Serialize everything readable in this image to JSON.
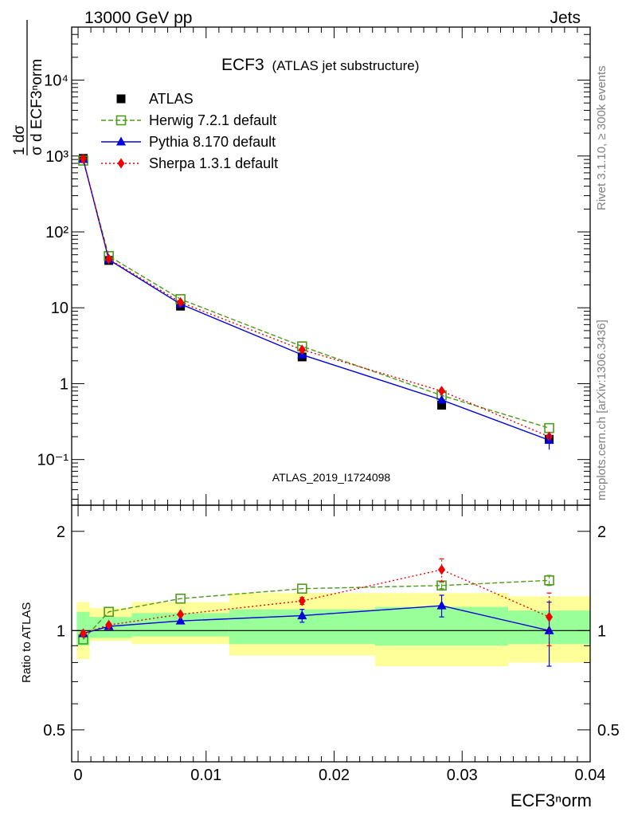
{
  "header": {
    "left": "13000 GeV pp",
    "right": "Jets"
  },
  "side_labels": {
    "rivet": "Rivet 3.1.10, ≥ 300k events",
    "mcplots": "mcplots.cern.ch [arXiv:1306.3436]"
  },
  "colors": {
    "atlas": "#000000",
    "herwig": "#4d9b1a",
    "pythia": "#0000dd",
    "sherpa": "#ee0000",
    "band_outer": "#ffff99",
    "band_inner": "#99ff99",
    "watermark": "#a0a0a0"
  },
  "chart_data": [
    {
      "type": "line",
      "panel": "main",
      "title": "ECF3",
      "subtitle": "(ATLAS jet substructure)",
      "watermark": "ATLAS_2019_I1724098",
      "ylabel_frac_top": "1   dσ",
      "ylabel_frac_bottom": "σ d ECF3ⁿorm",
      "yscale": "log",
      "xlim": [
        -0.0005,
        0.04
      ],
      "ylim": [
        0.025,
        50000
      ],
      "ytick_labels": [
        "10⁴",
        "10³",
        "10²",
        "10",
        "1",
        "10⁻¹"
      ],
      "ytick_values": [
        10000,
        1000,
        100,
        10,
        1,
        0.1
      ],
      "legend_position": "top-left",
      "series": [
        {
          "name": "ATLAS",
          "key": "atlas",
          "x": [
            0.0004,
            0.0024,
            0.008,
            0.0175,
            0.0284,
            0.0368
          ],
          "values": [
            930,
            42,
            10.5,
            2.25,
            0.52,
            0.185
          ]
        },
        {
          "name": "Herwig 7.2.1 default",
          "key": "herwig",
          "x": [
            0.0004,
            0.0024,
            0.008,
            0.0175,
            0.0284,
            0.0368
          ],
          "values": [
            870,
            48,
            13,
            3.1,
            0.7,
            0.26
          ]
        },
        {
          "name": "Pythia 8.170 default",
          "key": "pythia",
          "x": [
            0.0004,
            0.0024,
            0.008,
            0.0175,
            0.0284,
            0.0368
          ],
          "values": [
            905,
            43,
            11.2,
            2.4,
            0.61,
            0.18
          ]
        },
        {
          "name": "Sherpa 1.3.1 default",
          "key": "sherpa",
          "x": [
            0.0004,
            0.0024,
            0.008,
            0.0175,
            0.0284,
            0.0368
          ],
          "values": [
            920,
            44,
            11.8,
            2.8,
            0.8,
            0.2
          ]
        }
      ]
    },
    {
      "type": "line",
      "panel": "ratio",
      "ylabel": "Ratio to ATLAS",
      "xlabel": "ECF3ⁿorm",
      "yscale": "log",
      "xlim": [
        -0.0005,
        0.04
      ],
      "ylim": [
        0.4,
        2.4
      ],
      "ytick_labels": [
        "2",
        "1",
        "0.5"
      ],
      "ytick_values": [
        2,
        1,
        0.5
      ],
      "xtick_labels": [
        "0",
        "0.01",
        "0.02",
        "0.03",
        "0.04"
      ],
      "xtick_values": [
        0,
        0.01,
        0.02,
        0.03,
        0.04
      ],
      "bands": [
        {
          "x0": -0.0001,
          "x1": 0.0009,
          "inner": [
            0.9,
            1.14
          ],
          "outer": [
            0.82,
            1.22
          ]
        },
        {
          "x0": 0.0009,
          "x1": 0.0042,
          "inner": [
            0.95,
            1.1
          ],
          "outer": [
            0.93,
            1.17
          ]
        },
        {
          "x0": 0.0042,
          "x1": 0.0118,
          "inner": [
            0.96,
            1.13
          ],
          "outer": [
            0.91,
            1.22
          ]
        },
        {
          "x0": 0.0118,
          "x1": 0.0232,
          "inner": [
            0.91,
            1.16
          ],
          "outer": [
            0.84,
            1.3
          ]
        },
        {
          "x0": 0.0232,
          "x1": 0.0336,
          "inner": [
            0.9,
            1.18
          ],
          "outer": [
            0.78,
            1.3
          ]
        },
        {
          "x0": 0.0336,
          "x1": 0.04,
          "inner": [
            0.91,
            1.15
          ],
          "outer": [
            0.8,
            1.27
          ]
        }
      ],
      "series": [
        {
          "name": "Herwig 7.2.1 default",
          "key": "herwig",
          "x": [
            0.0004,
            0.0024,
            0.008,
            0.0175,
            0.0284,
            0.0368
          ],
          "values": [
            0.94,
            1.14,
            1.25,
            1.34,
            1.37,
            1.42
          ],
          "err": [
            0.02,
            0.02,
            0.02,
            0.02,
            0.03,
            0.05
          ]
        },
        {
          "name": "Pythia 8.170 default",
          "key": "pythia",
          "x": [
            0.0004,
            0.0024,
            0.008,
            0.0175,
            0.0284,
            0.0368
          ],
          "values": [
            0.98,
            1.03,
            1.07,
            1.11,
            1.19,
            1.0
          ],
          "err": [
            0.02,
            0.02,
            0.02,
            0.05,
            0.09,
            0.22
          ]
        },
        {
          "name": "Sherpa 1.3.1 default",
          "key": "sherpa",
          "x": [
            0.0004,
            0.0024,
            0.008,
            0.0175,
            0.0284,
            0.0368
          ],
          "values": [
            0.98,
            1.04,
            1.12,
            1.23,
            1.53,
            1.1
          ],
          "err": [
            0.02,
            0.02,
            0.02,
            0.03,
            0.12,
            0.2
          ]
        }
      ]
    }
  ],
  "legend": [
    {
      "key": "atlas",
      "label": "ATLAS"
    },
    {
      "key": "herwig",
      "label": "Herwig 7.2.1 default"
    },
    {
      "key": "pythia",
      "label": "Pythia 8.170 default"
    },
    {
      "key": "sherpa",
      "label": "Sherpa 1.3.1 default"
    }
  ]
}
